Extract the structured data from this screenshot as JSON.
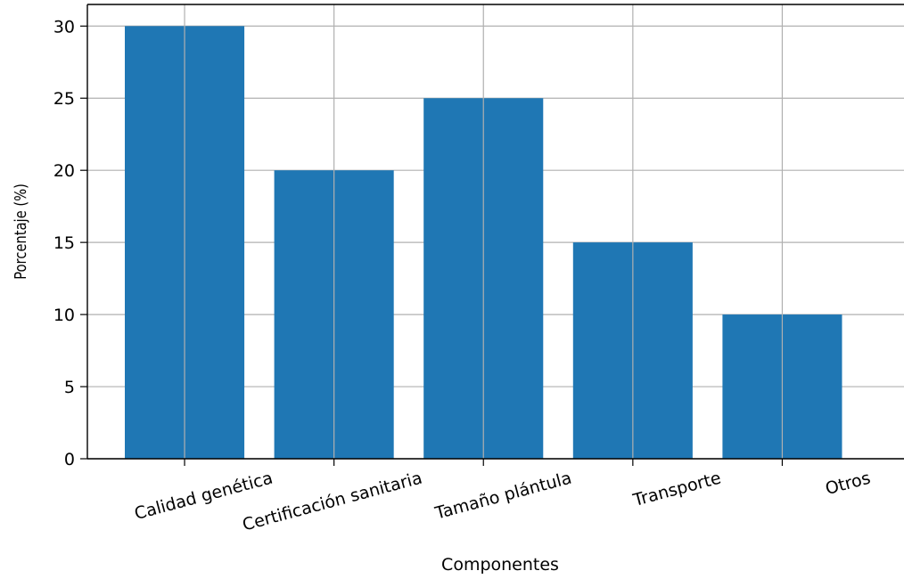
{
  "chart_data": {
    "type": "bar",
    "categories": [
      "Calidad genética",
      "Certificación sanitaria",
      "Tamaño plántula",
      "Transporte",
      "Otros"
    ],
    "values": [
      30,
      20,
      25,
      15,
      10
    ],
    "title": "",
    "xlabel": "Componentes",
    "ylabel": "Porcentaje (%)",
    "ylim": [
      0,
      31.5
    ],
    "yticks": [
      0,
      5,
      10,
      15,
      20,
      25,
      30
    ],
    "grid": true,
    "bar_color": "#1f77b4",
    "grid_color": "#b0b0b0"
  }
}
